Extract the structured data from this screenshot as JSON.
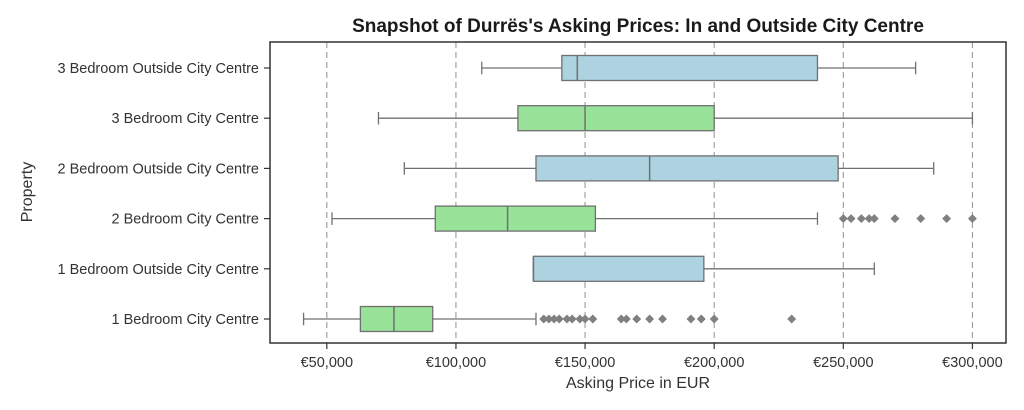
{
  "chart_data": {
    "type": "box",
    "orientation": "horizontal",
    "title": "Snapshot of Durrës's Asking Prices: In and Outside City Centre",
    "xlabel": "Asking Price in EUR",
    "ylabel": "Property",
    "xlim": [
      28000,
      313000
    ],
    "x_ticks": [
      50000,
      100000,
      150000,
      200000,
      250000,
      300000
    ],
    "x_tick_labels": [
      "€50,000",
      "€100,000",
      "€150,000",
      "€200,000",
      "€250,000",
      "€300,000"
    ],
    "grid": "vertical dashed",
    "colors": {
      "in_city_centre": "#98e29a",
      "outside_city_centre": "#add3e0",
      "outlier": "#808080",
      "line": "#707070"
    },
    "categories": [
      "3 Bedroom Outside City Centre",
      "3 Bedroom City Centre",
      "2 Bedroom Outside City Centre",
      "2 Bedroom City Centre",
      "1 Bedroom Outside City Centre",
      "1 Bedroom City Centre"
    ],
    "boxes": [
      {
        "category": "3 Bedroom Outside City Centre",
        "location": "outside",
        "whisker_low": 110000,
        "q1": 141000,
        "median": 147000,
        "q3": 240000,
        "whisker_high": 278000,
        "outliers": []
      },
      {
        "category": "3 Bedroom City Centre",
        "location": "in",
        "whisker_low": 70000,
        "q1": 124000,
        "median": 150000,
        "q3": 200000,
        "whisker_high": 300000,
        "outliers": []
      },
      {
        "category": "2 Bedroom Outside City Centre",
        "location": "outside",
        "whisker_low": 80000,
        "q1": 131000,
        "median": 175000,
        "q3": 248000,
        "whisker_high": 285000,
        "outliers": []
      },
      {
        "category": "2 Bedroom City Centre",
        "location": "in",
        "whisker_low": 52000,
        "q1": 92000,
        "median": 120000,
        "q3": 154000,
        "whisker_high": 240000,
        "outliers": [
          250000,
          253000,
          257000,
          260000,
          262000,
          270000,
          280000,
          290000,
          300000
        ]
      },
      {
        "category": "1 Bedroom Outside City Centre",
        "location": "outside",
        "whisker_low": 130000,
        "q1": 130000,
        "median": 130000,
        "q3": 196000,
        "whisker_high": 262000,
        "outliers": []
      },
      {
        "category": "1 Bedroom City Centre",
        "location": "in",
        "whisker_low": 41000,
        "q1": 63000,
        "median": 76000,
        "q3": 91000,
        "whisker_high": 131000,
        "outliers": [
          134000,
          136000,
          138000,
          140000,
          143000,
          145000,
          148000,
          150000,
          153000,
          164000,
          166000,
          170000,
          175000,
          180000,
          191000,
          195000,
          200000,
          230000
        ]
      }
    ]
  }
}
